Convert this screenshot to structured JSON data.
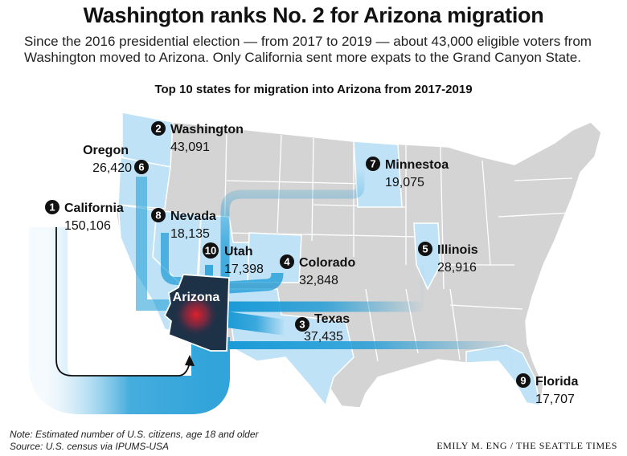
{
  "header": {
    "title": "Washington ranks No. 2 for Arizona migration",
    "subtitle": "Since the 2016 presidential election — from 2017 to 2019 — about 43,000 eligible voters from Washington moved to Arizona. Only California sent more expats to the Grand Canyon State."
  },
  "chart_title": "Top 10 states for migration into Arizona from 2017-2019",
  "destination": "Arizona",
  "states": [
    {
      "rank": "1",
      "name": "California",
      "value": "150,106"
    },
    {
      "rank": "2",
      "name": "Washington",
      "value": "43,091"
    },
    {
      "rank": "3",
      "name": "Texas",
      "value": "37,435"
    },
    {
      "rank": "4",
      "name": "Colorado",
      "value": "32,848"
    },
    {
      "rank": "5",
      "name": "Illinois",
      "value": "28,916"
    },
    {
      "rank": "6",
      "name": "Oregon",
      "value": "26,420"
    },
    {
      "rank": "7",
      "name": "Minnestoa",
      "value": "19,075"
    },
    {
      "rank": "8",
      "name": "Nevada",
      "value": "18,135"
    },
    {
      "rank": "9",
      "name": "Florida",
      "value": "17,707"
    },
    {
      "rank": "10",
      "name": "Utah",
      "value": "17,398"
    }
  ],
  "colors": {
    "land": "#d4d4d4",
    "source_state": "#bfe2f6",
    "arizona": "#1d3147",
    "flow": "#1a9ad6",
    "border": "#ffffff"
  },
  "footer": {
    "note": "Note: Estimated number of U.S. citizens, age 18 and older",
    "source": "Source: U.S. census via IPUMS-USA",
    "credit": "EMILY M. ENG / THE SEATTLE TIMES"
  }
}
